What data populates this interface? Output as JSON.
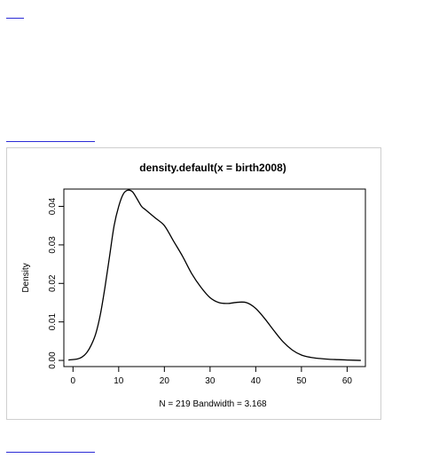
{
  "chart_data": {
    "type": "line",
    "title": "density.default(x = birth2008)",
    "xlabel": "N = 219   Bandwidth = 3.168",
    "ylabel": "Density",
    "xlim": [
      -2,
      64
    ],
    "ylim": [
      -0.0016,
      0.0445
    ],
    "grid": false,
    "legend": "none",
    "x_ticks": [
      0,
      10,
      20,
      30,
      40,
      50,
      60
    ],
    "y_ticks": [
      0.0,
      0.01,
      0.02,
      0.03,
      0.04
    ],
    "x_tick_labels": [
      "0",
      "10",
      "20",
      "30",
      "40",
      "50",
      "60"
    ],
    "y_tick_labels": [
      "0.00",
      "0.01",
      "0.02",
      "0.03",
      "0.04"
    ],
    "series": [
      {
        "x": [
          -1,
          1,
          2,
          3,
          4,
          5,
          6,
          7,
          8,
          9,
          10,
          11,
          12,
          13,
          14,
          15,
          16,
          18,
          20,
          22,
          24,
          26,
          28,
          30,
          32,
          34,
          36,
          38,
          40,
          42,
          44,
          46,
          48,
          50,
          52,
          54,
          56,
          58,
          60,
          63
        ],
        "y": [
          0.0001,
          0.0004,
          0.0009,
          0.002,
          0.004,
          0.007,
          0.012,
          0.019,
          0.027,
          0.035,
          0.04,
          0.0432,
          0.0442,
          0.0438,
          0.042,
          0.04,
          0.039,
          0.037,
          0.035,
          0.031,
          0.027,
          0.0225,
          0.019,
          0.0163,
          0.015,
          0.0148,
          0.0151,
          0.015,
          0.0135,
          0.0108,
          0.0077,
          0.0048,
          0.0027,
          0.0014,
          0.0008,
          0.0005,
          0.0003,
          0.0002,
          0.0001,
          0.0
        ]
      }
    ]
  },
  "colors": {
    "line": "#000000",
    "link": "#2b2bd6",
    "frame": "#cfcfcf"
  }
}
